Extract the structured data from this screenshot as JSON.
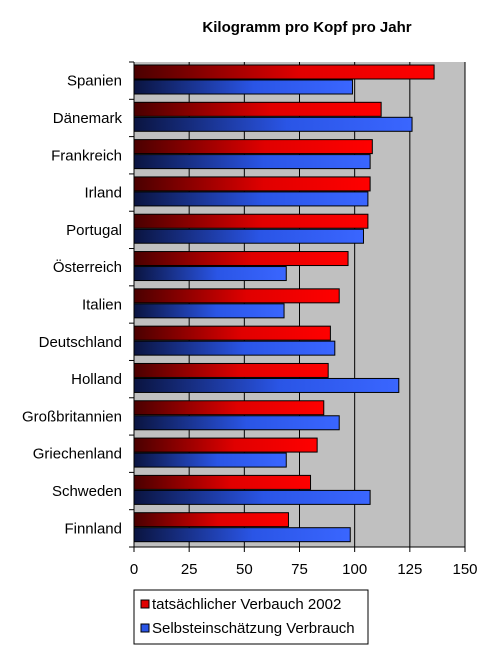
{
  "chart_data": {
    "type": "bar",
    "orientation": "horizontal",
    "title": "Kilogramm pro Kopf pro Jahr",
    "xlabel": "",
    "ylabel": "",
    "categories": [
      "Spanien",
      "Dänemark",
      "Frankreich",
      "Irland",
      "Portugal",
      "Österreich",
      "Italien",
      "Deutschland",
      "Holland",
      "Großbritannien",
      "Griechenland",
      "Schweden",
      "Finnland"
    ],
    "series": [
      {
        "name": "tatsächlicher Verbauch 2002",
        "color": "#ff0000",
        "values": [
          136,
          112,
          108,
          107,
          106,
          97,
          93,
          89,
          88,
          86,
          83,
          80,
          70
        ]
      },
      {
        "name": "Selbsteinschätzung Verbrauch",
        "color": "#3366ff",
        "values": [
          99,
          126,
          107,
          106,
          104,
          69,
          68,
          91,
          120,
          93,
          69,
          107,
          98
        ]
      }
    ],
    "xlim": [
      0,
      150
    ],
    "xticks": [
      "0",
      "25",
      "50",
      "75",
      "100",
      "125",
      "150"
    ],
    "grid": true,
    "legend_position": "bottom-left"
  }
}
